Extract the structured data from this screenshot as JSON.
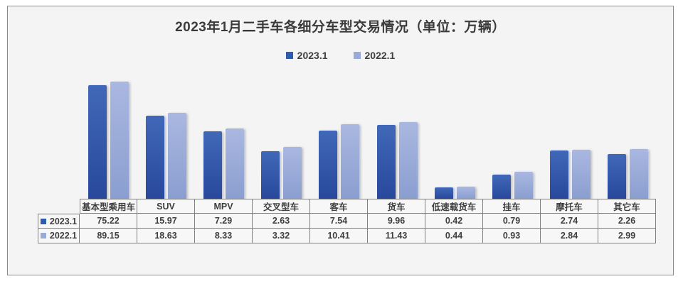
{
  "chart_data": {
    "type": "bar",
    "title": "2023年1月二手车各细分车型交易情况（单位：万辆）",
    "unit": "万辆",
    "categories": [
      "基本型乘用车",
      "SUV",
      "MPV",
      "交叉型车",
      "客车",
      "货车",
      "低速载货车",
      "挂车",
      "摩托车",
      "其它车"
    ],
    "series": [
      {
        "name": "2023.1",
        "values": [
          75.22,
          15.97,
          7.29,
          2.63,
          7.54,
          9.96,
          0.42,
          0.79,
          2.74,
          2.26
        ],
        "color": "#2f5bac",
        "color_top": "#4168b8",
        "color_bottom": "#28489c"
      },
      {
        "name": "2022.1",
        "values": [
          89.15,
          18.63,
          8.33,
          3.32,
          10.41,
          11.43,
          0.44,
          0.93,
          2.84,
          2.99
        ],
        "color": "#97aad8",
        "color_top": "#aab8e0",
        "color_bottom": "#8a9ed0"
      }
    ],
    "legend_position": "top",
    "scale": "log",
    "grid": false,
    "axes_hidden": true,
    "data_table_shown": true,
    "value_decimals": 2
  },
  "colors": {
    "page_bg": "#ffffff",
    "panel_bg": "#f4f4f5",
    "panel_border": "#8a8a8a",
    "table_border": "#808080",
    "cell_bg": "#f7f7f8",
    "text": "#3f3f3f"
  }
}
